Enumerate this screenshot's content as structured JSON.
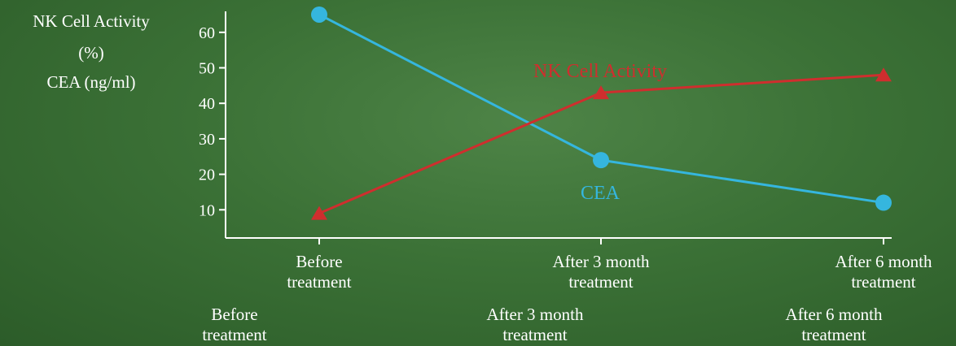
{
  "chart_data": {
    "type": "line",
    "title": "",
    "ylabel_lines": [
      "NK Cell Activity",
      "(%)",
      "CEA (ng/ml)"
    ],
    "xlabel": "",
    "ylim": [
      0,
      65
    ],
    "yticks": [
      10,
      20,
      30,
      40,
      50,
      60
    ],
    "categories": [
      [
        "Before",
        "treatment"
      ],
      [
        "After 3 month",
        "treatment"
      ],
      [
        "After 6 month",
        "treatment"
      ]
    ],
    "bottom_labels": [
      [
        "Before",
        "treatment"
      ],
      [
        "After 3 month",
        "treatment"
      ],
      [
        "After 6 month",
        "treatment"
      ]
    ],
    "series": [
      {
        "name": "CEA",
        "values": [
          65,
          24,
          12
        ],
        "color": "#35b6de",
        "marker": "circle"
      },
      {
        "name": "NK Cell Activity",
        "values": [
          9,
          43,
          48
        ],
        "color": "#cf2e2e",
        "marker": "triangle"
      }
    ],
    "grid": false,
    "legend": "inline labels"
  }
}
